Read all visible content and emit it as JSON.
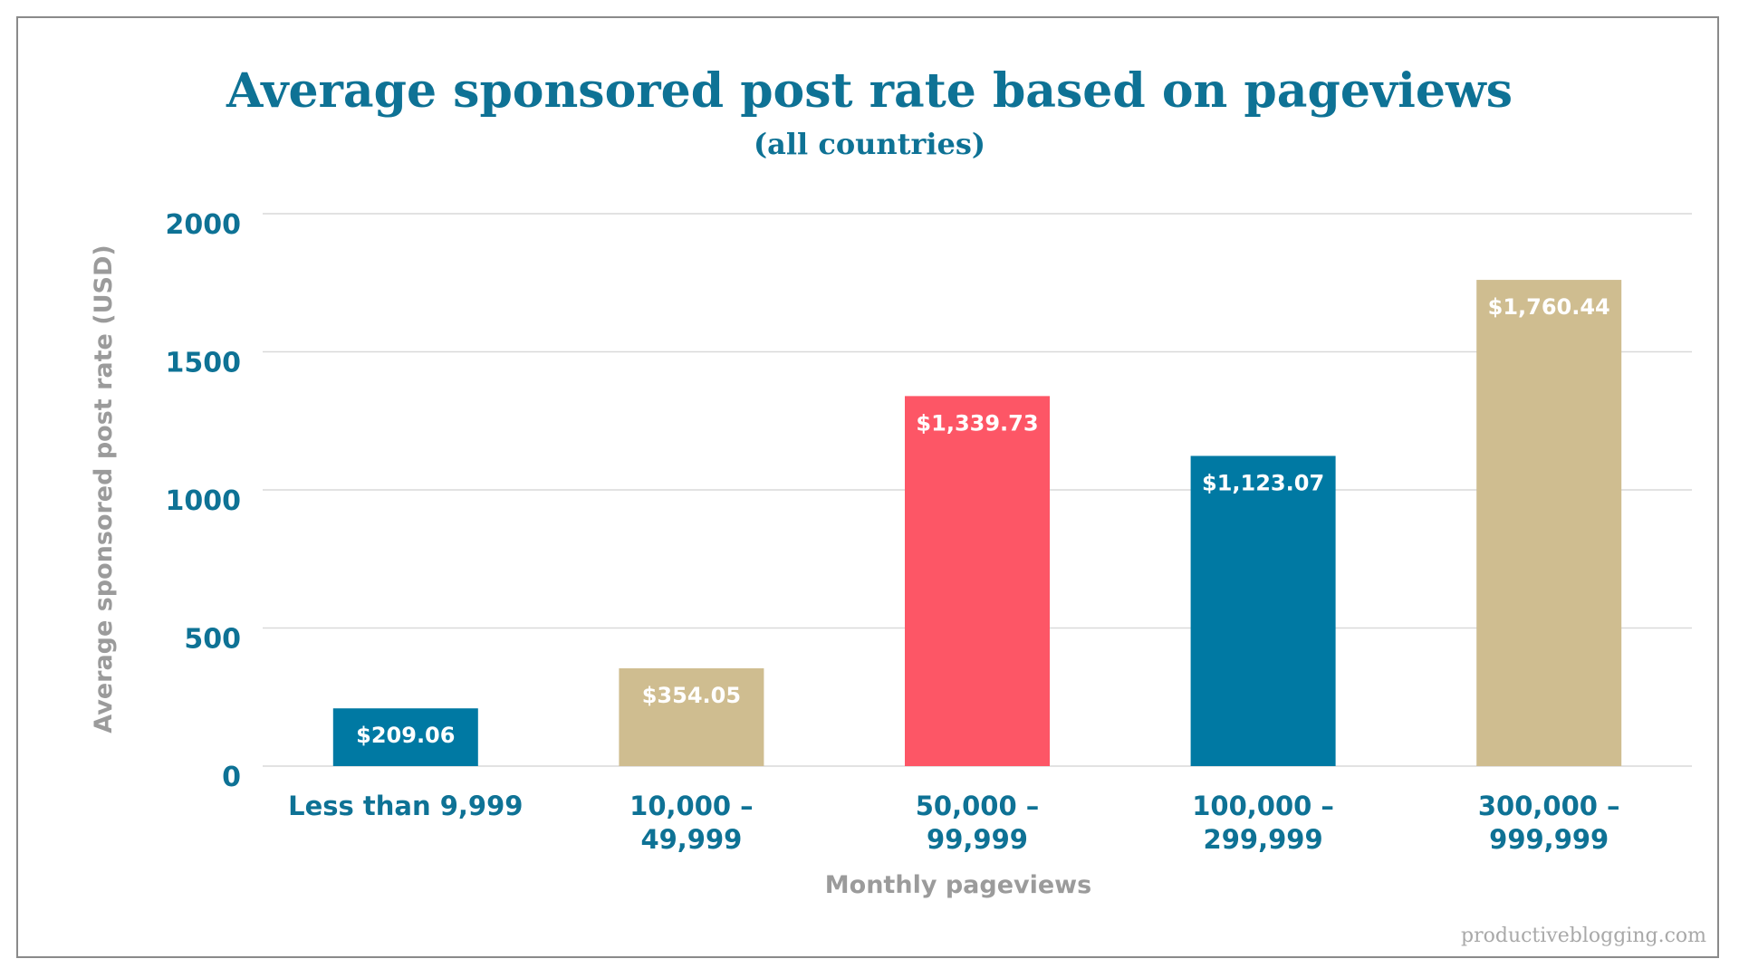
{
  "chart_data": {
    "type": "bar",
    "title": "Average sponsored post rate based on pageviews",
    "subtitle": "(all countries)",
    "xlabel": "Monthly pageviews",
    "ylabel": "Average sponsored post rate (USD)",
    "ylim": [
      0,
      2000
    ],
    "yticks": [
      "0",
      "500",
      "1000",
      "1500",
      "2000"
    ],
    "grid": true,
    "categories": [
      [
        "Less than 9,999"
      ],
      [
        "10,000 –",
        "49,999"
      ],
      [
        "50,000 –",
        "99,999"
      ],
      [
        "100,000 –",
        "299,999"
      ],
      [
        "300,000 –",
        "999,999"
      ]
    ],
    "values": [
      209.06,
      354.05,
      1339.73,
      1123.07,
      1760.44
    ],
    "data_labels": [
      "$209.06",
      "$354.05",
      "$1,339.73",
      "$1,123.07",
      "$1,760.44"
    ],
    "bar_colors": [
      "#0079a3",
      "#cfbd90",
      "#fd5666",
      "#0079a3",
      "#cfbd90"
    ]
  },
  "watermark": "productiveblogging.com",
  "colors": {
    "title": "#0e7295",
    "tick_label": "#0e7295",
    "axis_label": "#9b9b9b",
    "gridline": "#d9d9d9",
    "frame_border": "#8a8a8a"
  }
}
